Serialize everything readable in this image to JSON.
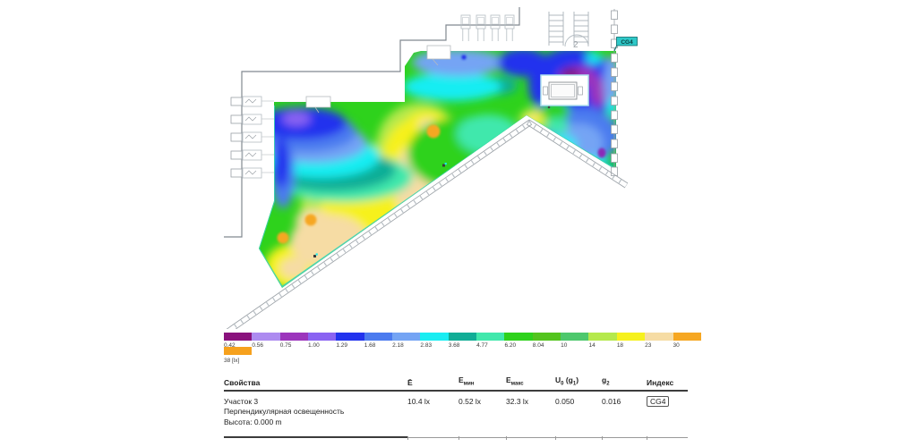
{
  "plan": {
    "flag_label": "CG4",
    "stair_label": "2",
    "accent_teal": "#2ec8c8",
    "outline_grey": "#8d959b"
  },
  "scale": {
    "values": [
      "0.42",
      "0.56",
      "0.75",
      "1.00",
      "1.29",
      "1.68",
      "2.18",
      "2.83",
      "3.68",
      "4.77",
      "6.20",
      "8.04",
      "10",
      "14",
      "18",
      "23",
      "30"
    ],
    "colors": [
      "#8a127d",
      "#ad8bf0",
      "#9c35bc",
      "#8a63f2",
      "#2233ee",
      "#4b7bef",
      "#74a4f4",
      "#19edf2",
      "#11ad96",
      "#41e8ac",
      "#2ed21c",
      "#53c41e",
      "#4ec86d",
      "#b5e94c",
      "#f6f11d",
      "#f6dca4",
      "#f6a722"
    ],
    "overflow_color": "#f6a11d",
    "overflow_label": "38 [lx]"
  },
  "chart_data": {
    "type": "heatmap",
    "title": "Перпендикулярная освещенность — Участок 3",
    "unit": "lx",
    "legend_levels_lx": [
      0.42,
      0.56,
      0.75,
      1.0,
      1.29,
      1.68,
      2.18,
      2.83,
      3.68,
      4.77,
      6.2,
      8.04,
      10,
      14,
      18,
      23,
      30,
      38
    ],
    "e_avg_lx": 10.4,
    "e_min_lx": 0.52,
    "e_max_lx": 32.3,
    "u0_g1": 0.05,
    "g2": 0.016
  },
  "table": {
    "headers": {
      "properties": "Свойства",
      "e_avg": "Ē",
      "e_min_base": "E",
      "e_min_sub": "мин",
      "e_max_base": "E",
      "e_max_sub": "макс",
      "u0_p1": "U",
      "u0_s1": "0",
      "u0_p2": " (g",
      "u0_s2": "1",
      "u0_p3": ")",
      "g2_base": "g",
      "g2_sub": "2",
      "index": "Индекс"
    },
    "row": {
      "name": "Участок 3",
      "type": "Перпендикулярная освещенность",
      "height": "Высота: 0.000 m",
      "e_avg": "10.4 lx",
      "e_min": "0.52 lx",
      "e_max": "32.3 lx",
      "u0": "0.050",
      "g2": "0.016",
      "index": "CG4"
    }
  }
}
